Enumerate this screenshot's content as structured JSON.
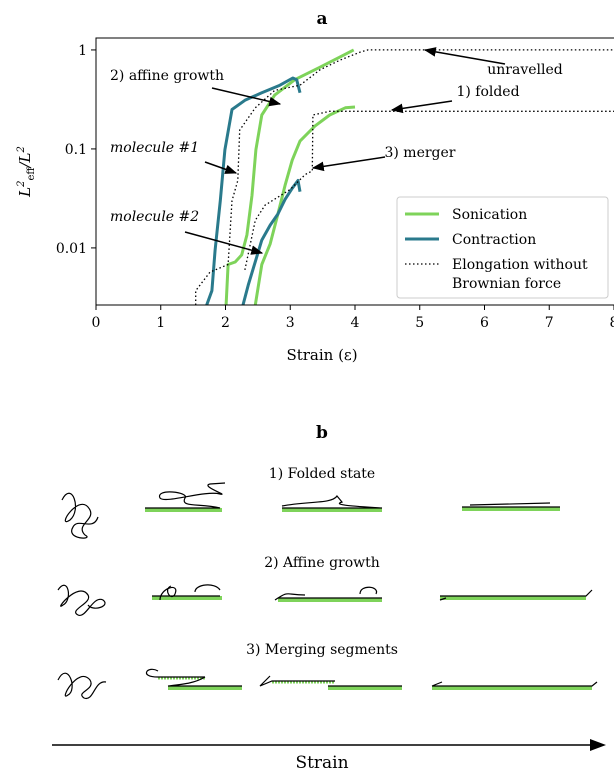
{
  "chart_data": {
    "type": "line",
    "title": "a",
    "x_label": "Strain (ε)",
    "y_label": [
      "L",
      "2",
      "eff",
      "/L",
      "2"
    ],
    "log_y": true,
    "xlim": [
      0,
      8
    ],
    "xticks": [
      0,
      1,
      2,
      3,
      4,
      5,
      6,
      7,
      8
    ],
    "ylim": [
      0.00265,
      1.32
    ],
    "yticks": [
      0.01,
      0.1,
      1
    ],
    "legend": "lower right",
    "series": [
      {
        "name": "Sonication",
        "color": "#7ed35a",
        "style": "solid",
        "x": [
          2.01,
          2.04,
          2.15,
          2.25,
          2.33,
          2.41,
          2.47,
          2.56,
          2.76,
          3.07,
          3.46,
          3.77,
          3.98,
          null,
          2.46,
          2.56,
          2.69,
          2.81,
          2.92,
          3.03,
          3.15,
          3.38,
          3.61,
          3.85,
          4.0
        ],
        "values": [
          0.00265,
          0.0068,
          0.0072,
          0.0085,
          0.0135,
          0.034,
          0.098,
          0.22,
          0.35,
          0.5,
          0.67,
          0.85,
          1.0,
          null,
          0.00265,
          0.0068,
          0.011,
          0.022,
          0.043,
          0.077,
          0.12,
          0.17,
          0.22,
          0.26,
          0.265
        ]
      },
      {
        "name": "Contraction",
        "color": "#2a7a8c",
        "style": "solid",
        "x": [
          1.71,
          1.79,
          1.84,
          1.92,
          1.99,
          2.1,
          2.3,
          2.56,
          2.84,
          3.04,
          3.1,
          3.15,
          null,
          2.27,
          2.35,
          2.47,
          2.56,
          2.69,
          2.81,
          2.92,
          3.03,
          3.12,
          3.15
        ],
        "values": [
          0.00265,
          0.0037,
          0.0095,
          0.03,
          0.098,
          0.25,
          0.31,
          0.37,
          0.44,
          0.52,
          0.5,
          0.37,
          null,
          0.00265,
          0.0042,
          0.0076,
          0.012,
          0.017,
          0.022,
          0.031,
          0.04,
          0.048,
          0.037
        ]
      },
      {
        "name": "Elongation without\nBrownian force",
        "color": "#000000",
        "style": "dotted",
        "x": [
          1.54,
          1.54,
          1.76,
          2.04,
          2.1,
          2.19,
          2.22,
          2.46,
          2.76,
          3.15,
          3.46,
          3.77,
          4.08,
          4.2,
          8,
          null,
          2.3,
          2.46,
          2.61,
          3.0,
          3.23,
          3.34,
          3.35,
          3.61,
          8
        ],
        "values": [
          0.00265,
          0.0037,
          0.0057,
          0.0068,
          0.03,
          0.048,
          0.155,
          0.26,
          0.39,
          0.44,
          0.63,
          0.79,
          0.95,
          1.0,
          1.0,
          null,
          0.006,
          0.019,
          0.027,
          0.039,
          0.055,
          0.06,
          0.22,
          0.24,
          0.24
        ]
      }
    ],
    "annotations": [
      "unravelled",
      "1) folded",
      "2) affine growth",
      "3) merger",
      "molecule #1",
      "molecule #2"
    ]
  },
  "panel_b": {
    "title": "b",
    "rows": [
      "1) Folded state",
      "2) Affine growth",
      "3) Merging segments"
    ],
    "axis_label": "Strain"
  }
}
